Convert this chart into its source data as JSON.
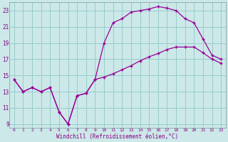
{
  "xlabel": "Windchill (Refroidissement éolien,°C)",
  "bg_color": "#cce8e8",
  "grid_color": "#99cccc",
  "line_color": "#990099",
  "xlim": [
    -0.5,
    23.5
  ],
  "ylim": [
    8.5,
    24.0
  ],
  "xticks": [
    0,
    1,
    2,
    3,
    4,
    5,
    6,
    7,
    8,
    9,
    10,
    11,
    12,
    13,
    14,
    15,
    16,
    17,
    18,
    19,
    20,
    21,
    22,
    23
  ],
  "yticks": [
    9,
    11,
    13,
    15,
    17,
    19,
    21,
    23
  ],
  "curve1_x": [
    0,
    1,
    2,
    3,
    4,
    5,
    6,
    7,
    8,
    9,
    10,
    11,
    12,
    13,
    14,
    15,
    16,
    17,
    18,
    19,
    20,
    21,
    22,
    23
  ],
  "curve1_y": [
    14.5,
    13.0,
    13.5,
    13.0,
    13.5,
    10.5,
    9.0,
    12.5,
    12.8,
    14.5,
    19.0,
    21.5,
    22.0,
    22.8,
    23.0,
    23.2,
    23.5,
    23.3,
    23.0,
    22.0,
    21.5,
    19.5,
    17.5,
    17.0
  ],
  "curve2_x": [
    0,
    1,
    2,
    3,
    4,
    5,
    6,
    7,
    8,
    9,
    10,
    11,
    12,
    13,
    14,
    15,
    16,
    17,
    18,
    19,
    20,
    21,
    22,
    23
  ],
  "curve2_y": [
    14.5,
    13.0,
    13.5,
    13.0,
    13.5,
    10.5,
    9.0,
    12.5,
    12.8,
    14.5,
    14.8,
    15.2,
    15.7,
    16.2,
    16.8,
    17.3,
    17.7,
    18.2,
    18.5,
    18.5,
    18.5,
    17.8,
    17.0,
    16.5
  ]
}
